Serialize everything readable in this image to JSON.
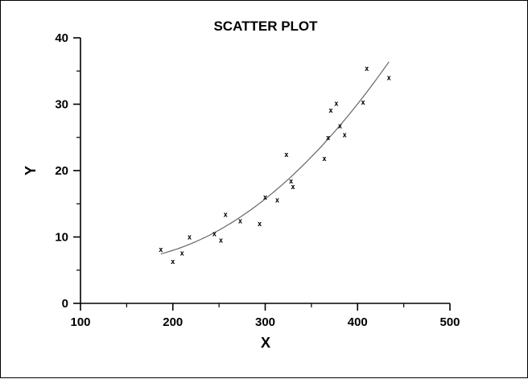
{
  "chart_data": {
    "type": "scatter",
    "title": "SCATTER PLOT",
    "xlabel": "X",
    "ylabel": "Y",
    "xlim": [
      100,
      500
    ],
    "ylim": [
      0,
      40
    ],
    "x_ticks": [
      100,
      200,
      300,
      400,
      500
    ],
    "y_ticks": [
      0,
      10,
      20,
      30,
      40
    ],
    "x_tick_labels": [
      "100",
      "200",
      "300",
      "400",
      "500"
    ],
    "y_tick_labels": [
      "0",
      "10",
      "20",
      "30",
      "40"
    ],
    "x_minor_step": 50,
    "y_minor_step": 5,
    "grid": false,
    "marker": "x",
    "points": [
      {
        "x": 187,
        "y": 8.1
      },
      {
        "x": 200,
        "y": 6.3
      },
      {
        "x": 210,
        "y": 7.6
      },
      {
        "x": 218,
        "y": 10.0
      },
      {
        "x": 245,
        "y": 10.5
      },
      {
        "x": 252,
        "y": 9.5
      },
      {
        "x": 257,
        "y": 13.4
      },
      {
        "x": 273,
        "y": 12.4
      },
      {
        "x": 294,
        "y": 12.0
      },
      {
        "x": 300,
        "y": 16.0
      },
      {
        "x": 313,
        "y": 15.6
      },
      {
        "x": 323,
        "y": 22.4
      },
      {
        "x": 328,
        "y": 18.4
      },
      {
        "x": 330,
        "y": 17.6
      },
      {
        "x": 364,
        "y": 21.8
      },
      {
        "x": 368,
        "y": 25.0
      },
      {
        "x": 371,
        "y": 29.1
      },
      {
        "x": 377,
        "y": 30.1
      },
      {
        "x": 381,
        "y": 26.7
      },
      {
        "x": 386,
        "y": 25.4
      },
      {
        "x": 406,
        "y": 30.3
      },
      {
        "x": 410,
        "y": 35.4
      },
      {
        "x": 434,
        "y": 34.0
      }
    ],
    "fit_curve": {
      "type": "quadratic",
      "points": [
        {
          "x": 187,
          "y": 7.2
        },
        {
          "x": 200,
          "y": 8.0
        },
        {
          "x": 250,
          "y": 11.4
        },
        {
          "x": 300,
          "y": 16.0
        },
        {
          "x": 350,
          "y": 21.9
        },
        {
          "x": 400,
          "y": 29.2
        },
        {
          "x": 434,
          "y": 37.0
        }
      ]
    },
    "colors": {
      "axis": "#000000",
      "markers": "#000000",
      "curve": "#666666",
      "background": "#ffffff"
    }
  }
}
